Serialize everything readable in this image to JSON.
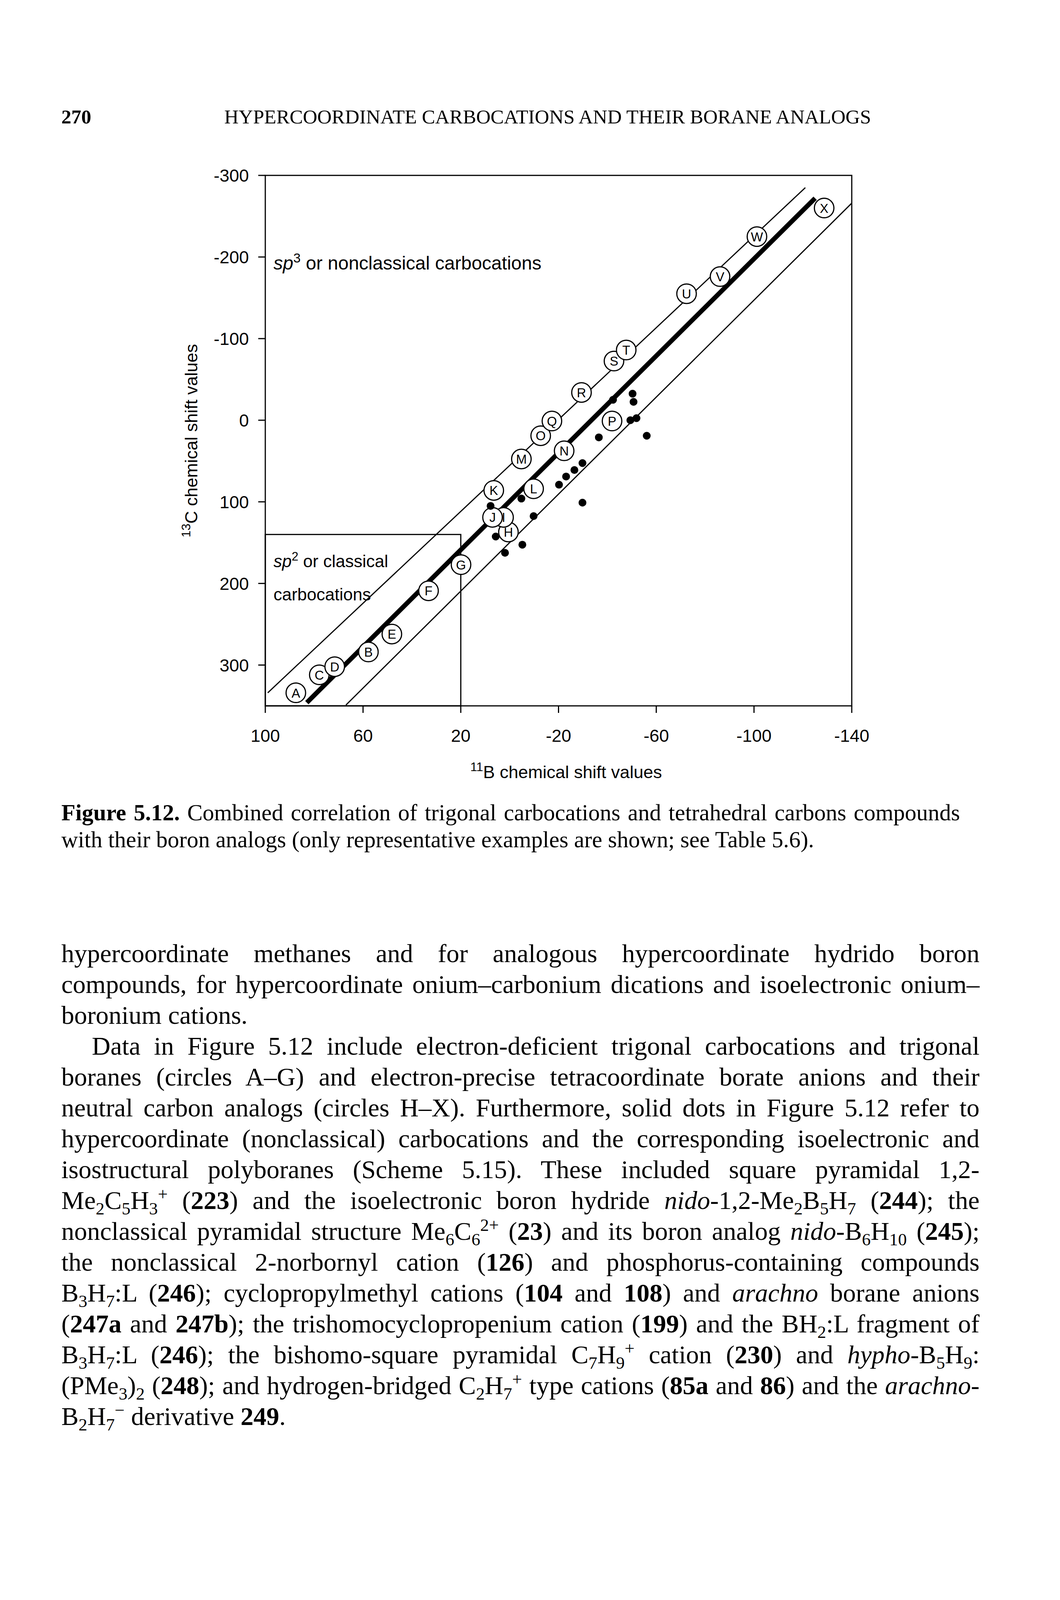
{
  "header": {
    "page": "270",
    "title": "HYPERCOORDINATE CARBOCATIONS AND THEIR BORANE ANALOGS"
  },
  "chart_data": {
    "type": "scatter",
    "color": "#000000",
    "xlabel": [
      {
        "sup": "11"
      },
      "B chemical shift values"
    ],
    "ylabel": [
      {
        "sup": "13"
      },
      "C chemical shift values"
    ],
    "xlim": [
      100,
      -140
    ],
    "ylim": [
      -300,
      350
    ],
    "xticks": [
      100,
      60,
      20,
      -20,
      -60,
      -100,
      -140
    ],
    "yticks": [
      -300,
      -200,
      -100,
      0,
      100,
      200,
      300
    ],
    "box": {
      "x": [
        20,
        100
      ],
      "y": [
        140,
        350
      ]
    },
    "annotations": [
      [
        [
          {
            "i": "sp"
          },
          {
            "sup": "3"
          },
          " or nonclassical carbocations"
        ]
      ],
      [
        [
          {
            "i": "sp"
          },
          {
            "sup": "2"
          },
          " or classical"
        ],
        [
          "carbocations"
        ]
      ]
    ],
    "series": [
      {
        "type": "scatter",
        "marker": "labeled-circle",
        "labels": [
          "A",
          "B",
          "C",
          "D",
          "E",
          "F",
          "G",
          "H",
          "I",
          "J",
          "K",
          "L",
          "M",
          "N",
          "O",
          "P",
          "Q",
          "R",
          "S",
          "T",
          "U",
          "V",
          "W",
          "X"
        ],
        "x": [
          87.5,
          57.8,
          77.9,
          71.6,
          48.2,
          33.2,
          19.9,
          0.5,
          2.5,
          7,
          6.5,
          -9.8,
          -4.8,
          -22.3,
          -12.7,
          -41.9,
          -17.3,
          -29.4,
          -42.7,
          -47.7,
          -72.4,
          -86.1,
          -101.2,
          -128.7
        ],
        "values": [
          334,
          284,
          312,
          302,
          262,
          209,
          177,
          137,
          119,
          119,
          86,
          84,
          47.5,
          37.5,
          19,
          1,
          1,
          -34,
          -72.5,
          -86,
          -155,
          -176,
          -225,
          -260
        ]
      },
      {
        "type": "scatter",
        "marker": "dot",
        "x": [
          7.8,
          5.7,
          1.9,
          -5.2,
          -4.8,
          -9.8,
          -20.2,
          -23.1,
          -26.5,
          -29.8,
          -29.8,
          -36.5,
          -42.3,
          -50.3,
          -50.7,
          -49.4,
          -51.9,
          -56.1
        ],
        "values": [
          105,
          142.5,
          162.5,
          152.5,
          96,
          117.5,
          79,
          69,
          61,
          52.5,
          101,
          21,
          -25,
          -32.5,
          -22.5,
          0,
          -2.5,
          19
        ]
      },
      {
        "type": "line",
        "line_style": "thin",
        "x": [
          99,
          -121
        ],
        "values": [
          334,
          -285
        ]
      },
      {
        "type": "line",
        "line_style": "thick",
        "x": [
          83,
          -125
        ],
        "values": [
          346,
          -272
        ]
      },
      {
        "type": "line",
        "line_style": "thin",
        "x": [
          67,
          -140
        ],
        "values": [
          349,
          -266
        ]
      }
    ]
  },
  "caption": [
    {
      "b": "Figure 5.12."
    },
    " Combined correlation of trigonal carbocations and tetrahedral carbons compounds with their boron analogs (only representative examples are shown; see Table 5.6)."
  ],
  "body": [
    [
      "hypercoordinate methanes and for analogous hypercoordinate hydrido boron compounds, for hypercoordinate onium–carbonium dications and isoelectronic onium–boronium cations."
    ],
    [
      "Data in Figure 5.12 include electron-deficient trigonal carbocations and trigonal boranes (circles A–G) and electron-precise tetracoordinate borate anions and their neutral carbon analogs (circles H–X). Furthermore, solid dots in Figure 5.12 refer to hypercoordinate (nonclassical) carbocations and the corresponding isoelectronic and isostructural polyboranes (Scheme 5.15). These included square pyramidal 1,2-Me",
      {
        "sub": "2"
      },
      "C",
      {
        "sub": "5"
      },
      "H",
      {
        "sub": "3"
      },
      {
        "sup": "+"
      },
      " (",
      {
        "b": "223"
      },
      ") and the isoelectronic boron hydride ",
      {
        "i": "nido"
      },
      "-1,2-Me",
      {
        "sub": "2"
      },
      "B",
      {
        "sub": "5"
      },
      "H",
      {
        "sub": "7"
      },
      " (",
      {
        "b": "244"
      },
      "); the nonclassical pyramidal structure Me",
      {
        "sub": "6"
      },
      "C",
      {
        "sub": "6"
      },
      {
        "sup": "2+"
      },
      " (",
      {
        "b": "23"
      },
      ") and its boron analog ",
      {
        "i": "nido"
      },
      "-B",
      {
        "sub": "6"
      },
      "H",
      {
        "sub": "10"
      },
      " (",
      {
        "b": "245"
      },
      "); the nonclassical 2-norbornyl cation (",
      {
        "b": "126"
      },
      ") and phosphorus-containing compounds B",
      {
        "sub": "3"
      },
      "H",
      {
        "sub": "7"
      },
      ":L (",
      {
        "b": "246"
      },
      "); cyclopropylmethyl cations (",
      {
        "b": "104"
      },
      " and ",
      {
        "b": "108"
      },
      ") and ",
      {
        "i": "arachno"
      },
      " borane anions (",
      {
        "b": "247a"
      },
      " and ",
      {
        "b": "247b"
      },
      "); the trishomocyclopropenium cation (",
      {
        "b": "199"
      },
      ") and the BH",
      {
        "sub": "2"
      },
      ":L fragment of B",
      {
        "sub": "3"
      },
      "H",
      {
        "sub": "7"
      },
      ":L (",
      {
        "b": "246"
      },
      "); the bishomo-square pyramidal C",
      {
        "sub": "7"
      },
      "H",
      {
        "sub": "9"
      },
      {
        "sup": "+"
      },
      " cation (",
      {
        "b": "230"
      },
      ") and ",
      {
        "i": "hypho"
      },
      "-B",
      {
        "sub": "5"
      },
      "H",
      {
        "sub": "9"
      },
      ":(PMe",
      {
        "sub": "3"
      },
      ")",
      {
        "sub": "2"
      },
      " (",
      {
        "b": "248"
      },
      "); and hydrogen-bridged C",
      {
        "sub": "2"
      },
      "H",
      {
        "sub": "7"
      },
      {
        "sup": "+"
      },
      " type cations (",
      {
        "b": "85a"
      },
      " and ",
      {
        "b": "86"
      },
      ") and the ",
      {
        "i": "arachno"
      },
      "-B",
      {
        "sub": "2"
      },
      "H",
      {
        "sub": "7"
      },
      {
        "sup": "−"
      },
      " derivative ",
      {
        "b": "249"
      },
      "."
    ]
  ]
}
